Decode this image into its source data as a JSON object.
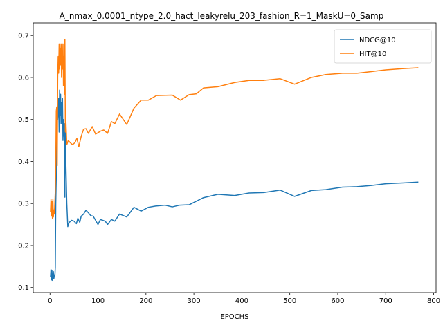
{
  "chart_data": {
    "type": "line",
    "title": "A_nmax_0.0001_ntype_2.0_hact_leakyrelu_203_fashion_R=1_MaskU=0_Samp",
    "xlabel": "EPOCHS",
    "ylabel": "",
    "xlim": [
      -35,
      805
    ],
    "ylim": [
      0.088,
      0.73
    ],
    "xticks": [
      0,
      100,
      200,
      300,
      400,
      500,
      600,
      700,
      800
    ],
    "yticks": [
      0.1,
      0.2,
      0.3,
      0.4,
      0.5,
      0.6,
      0.7
    ],
    "grid": false,
    "legend_position": "top-right",
    "series": [
      {
        "name": "NDCG@10",
        "color": "#1f77b4",
        "points": [
          [
            1,
            0.125
          ],
          [
            2,
            0.143
          ],
          [
            3,
            0.118
          ],
          [
            4,
            0.14
          ],
          [
            5,
            0.117
          ],
          [
            6,
            0.122
          ],
          [
            7,
            0.138
          ],
          [
            8,
            0.121
          ],
          [
            9,
            0.13
          ],
          [
            10,
            0.125
          ],
          [
            11,
            0.148
          ],
          [
            12,
            0.3
          ],
          [
            13,
            0.36
          ],
          [
            14,
            0.45
          ],
          [
            15,
            0.53
          ],
          [
            16,
            0.5
          ],
          [
            17,
            0.52
          ],
          [
            18,
            0.55
          ],
          [
            19,
            0.47
          ],
          [
            20,
            0.57
          ],
          [
            21,
            0.51
          ],
          [
            22,
            0.56
          ],
          [
            23,
            0.49
          ],
          [
            24,
            0.54
          ],
          [
            25,
            0.52
          ],
          [
            26,
            0.55
          ],
          [
            27,
            0.45
          ],
          [
            28,
            0.5
          ],
          [
            29,
            0.46
          ],
          [
            30,
            0.49
          ],
          [
            31,
            0.315
          ],
          [
            32,
            0.47
          ],
          [
            33,
            0.4
          ],
          [
            35,
            0.3
          ],
          [
            37,
            0.245
          ],
          [
            40,
            0.255
          ],
          [
            45,
            0.26
          ],
          [
            50,
            0.258
          ],
          [
            55,
            0.252
          ],
          [
            58,
            0.265
          ],
          [
            62,
            0.255
          ],
          [
            65,
            0.27
          ],
          [
            70,
            0.275
          ],
          [
            75,
            0.284
          ],
          [
            80,
            0.278
          ],
          [
            85,
            0.271
          ],
          [
            90,
            0.27
          ],
          [
            100,
            0.25
          ],
          [
            105,
            0.262
          ],
          [
            115,
            0.258
          ],
          [
            120,
            0.25
          ],
          [
            128,
            0.262
          ],
          [
            135,
            0.258
          ],
          [
            145,
            0.275
          ],
          [
            160,
            0.268
          ],
          [
            175,
            0.291
          ],
          [
            190,
            0.282
          ],
          [
            205,
            0.291
          ],
          [
            220,
            0.294
          ],
          [
            240,
            0.296
          ],
          [
            255,
            0.292
          ],
          [
            270,
            0.296
          ],
          [
            290,
            0.297
          ],
          [
            320,
            0.314
          ],
          [
            350,
            0.322
          ],
          [
            385,
            0.319
          ],
          [
            415,
            0.325
          ],
          [
            445,
            0.326
          ],
          [
            480,
            0.332
          ],
          [
            510,
            0.317
          ],
          [
            545,
            0.331
          ],
          [
            575,
            0.333
          ],
          [
            610,
            0.339
          ],
          [
            640,
            0.34
          ],
          [
            670,
            0.343
          ],
          [
            700,
            0.347
          ],
          [
            735,
            0.349
          ],
          [
            768,
            0.351
          ]
        ]
      },
      {
        "name": "HIT@10",
        "color": "#ff7f0e",
        "points": [
          [
            1,
            0.28
          ],
          [
            2,
            0.31
          ],
          [
            3,
            0.27
          ],
          [
            4,
            0.305
          ],
          [
            5,
            0.265
          ],
          [
            6,
            0.31
          ],
          [
            7,
            0.268
          ],
          [
            8,
            0.285
          ],
          [
            9,
            0.275
          ],
          [
            10,
            0.3
          ],
          [
            11,
            0.33
          ],
          [
            12,
            0.4
          ],
          [
            13,
            0.52
          ],
          [
            14,
            0.53
          ],
          [
            15,
            0.39
          ],
          [
            16,
            0.6
          ],
          [
            17,
            0.65
          ],
          [
            18,
            0.61
          ],
          [
            19,
            0.68
          ],
          [
            20,
            0.62
          ],
          [
            21,
            0.67
          ],
          [
            22,
            0.63
          ],
          [
            23,
            0.68
          ],
          [
            24,
            0.6
          ],
          [
            25,
            0.66
          ],
          [
            26,
            0.62
          ],
          [
            27,
            0.68
          ],
          [
            28,
            0.58
          ],
          [
            29,
            0.65
          ],
          [
            30,
            0.56
          ],
          [
            31,
            0.69
          ],
          [
            32,
            0.47
          ],
          [
            33,
            0.5
          ],
          [
            35,
            0.44
          ],
          [
            38,
            0.45
          ],
          [
            42,
            0.445
          ],
          [
            47,
            0.44
          ],
          [
            52,
            0.445
          ],
          [
            56,
            0.455
          ],
          [
            60,
            0.435
          ],
          [
            65,
            0.46
          ],
          [
            70,
            0.477
          ],
          [
            75,
            0.478
          ],
          [
            80,
            0.467
          ],
          [
            88,
            0.483
          ],
          [
            95,
            0.465
          ],
          [
            105,
            0.472
          ],
          [
            112,
            0.475
          ],
          [
            120,
            0.467
          ],
          [
            128,
            0.495
          ],
          [
            135,
            0.49
          ],
          [
            145,
            0.513
          ],
          [
            160,
            0.488
          ],
          [
            175,
            0.527
          ],
          [
            190,
            0.546
          ],
          [
            205,
            0.546
          ],
          [
            222,
            0.557
          ],
          [
            255,
            0.558
          ],
          [
            272,
            0.546
          ],
          [
            290,
            0.559
          ],
          [
            305,
            0.561
          ],
          [
            320,
            0.575
          ],
          [
            350,
            0.578
          ],
          [
            385,
            0.588
          ],
          [
            415,
            0.593
          ],
          [
            445,
            0.593
          ],
          [
            480,
            0.597
          ],
          [
            510,
            0.584
          ],
          [
            545,
            0.6
          ],
          [
            575,
            0.607
          ],
          [
            610,
            0.61
          ],
          [
            640,
            0.61
          ],
          [
            670,
            0.614
          ],
          [
            700,
            0.618
          ],
          [
            735,
            0.621
          ],
          [
            768,
            0.623
          ]
        ]
      }
    ]
  }
}
